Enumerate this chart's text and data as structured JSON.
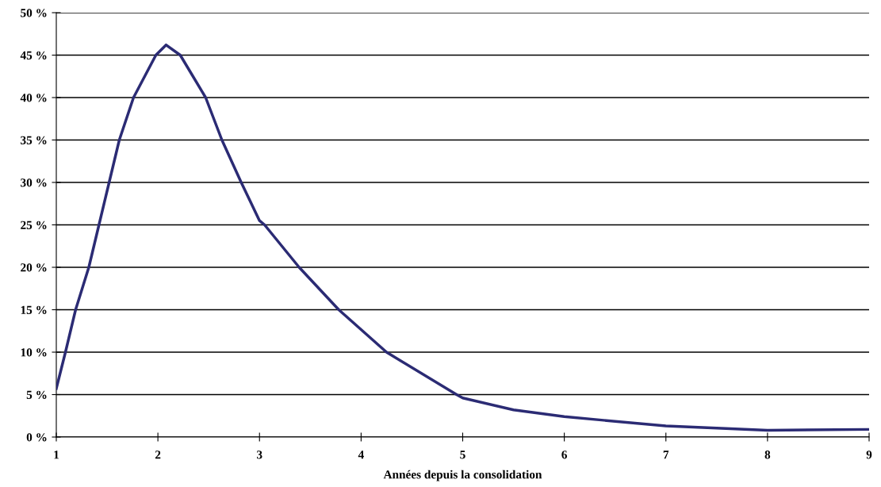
{
  "chart_data": {
    "type": "line",
    "xlabel": "Années depuis la consolidation",
    "x": [
      1,
      1.09,
      1.19,
      1.32,
      1.42,
      1.52,
      1.62,
      1.76,
      1.98,
      2.08,
      2.22,
      2.47,
      2.63,
      2.82,
      3,
      3.05,
      3.39,
      3.78,
      4.25,
      4.94,
      5,
      5.5,
      6,
      7,
      8,
      9
    ],
    "series": [
      {
        "color": "#2b2b74",
        "values": [
          5.7,
          10,
          15,
          20,
          25,
          30,
          35,
          40,
          45,
          46.2,
          45,
          40,
          35,
          30,
          25.5,
          25,
          20,
          15,
          10,
          5,
          4.6,
          3.2,
          2.4,
          1.3,
          0.8,
          0.9
        ]
      }
    ],
    "xlim": [
      1,
      9
    ],
    "xticks": [
      1,
      2,
      3,
      4,
      5,
      6,
      7,
      8,
      9
    ],
    "ylim": [
      0,
      50
    ],
    "yticks": [
      {
        "value": 0,
        "label": "0 %"
      },
      {
        "value": 5,
        "label": "5 %"
      },
      {
        "value": 10,
        "label": "10 %"
      },
      {
        "value": 15,
        "label": "15 %"
      },
      {
        "value": 20,
        "label": "20 %"
      },
      {
        "value": 25,
        "label": "25 %"
      },
      {
        "value": 30,
        "label": "30 %"
      },
      {
        "value": 35,
        "label": "35 %"
      },
      {
        "value": 40,
        "label": "40 %"
      },
      {
        "value": 45,
        "label": "45 %"
      },
      {
        "value": 50,
        "label": "50 %"
      }
    ],
    "grid": "y",
    "legend": false,
    "marker": "none",
    "line_style": "solid"
  }
}
